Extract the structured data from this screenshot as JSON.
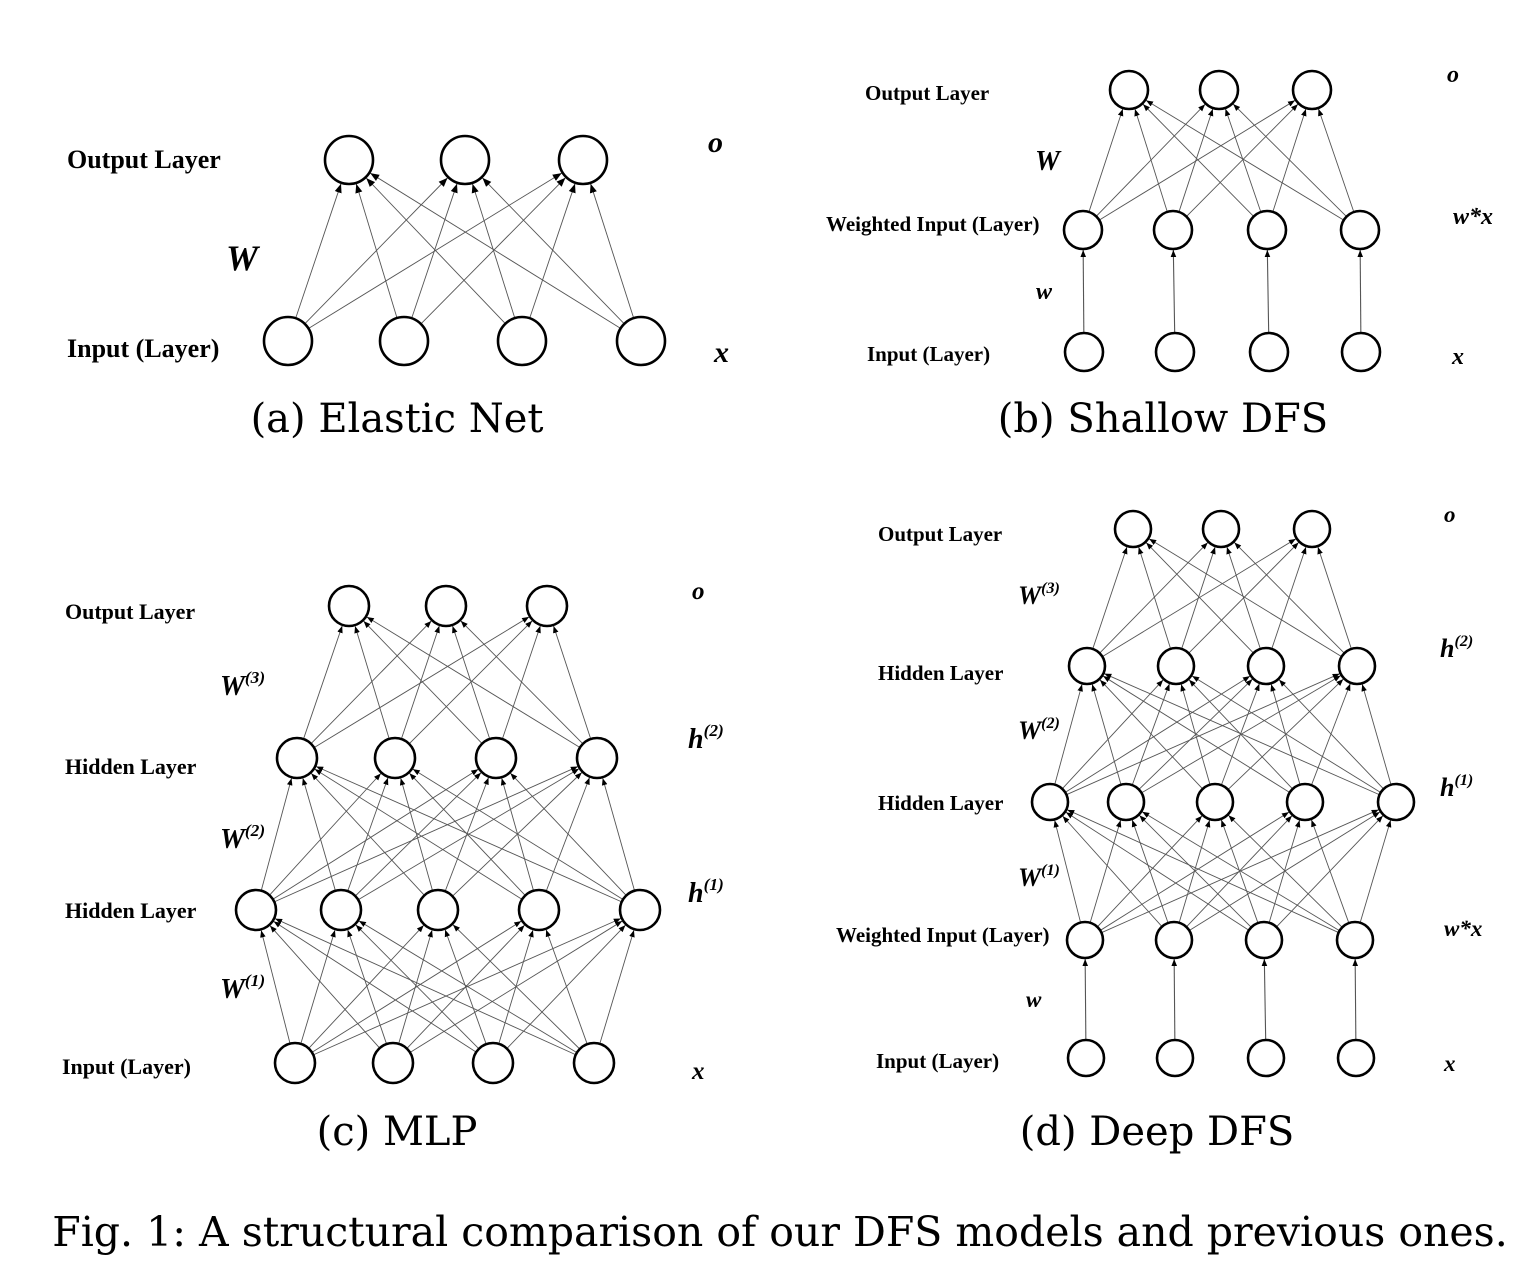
{
  "panels": [
    {
      "id": "a",
      "caption": "(a) Elastic Net",
      "layer_labels": [
        "Output Layer",
        "Input (Layer)"
      ],
      "var_labels": [
        {
          "base": "o",
          "sup": ""
        },
        {
          "base": "W",
          "sup": ""
        },
        {
          "base": "x",
          "sup": ""
        }
      ]
    },
    {
      "id": "b",
      "caption": "(b) Shallow DFS",
      "layer_labels": [
        "Output Layer",
        "Weighted Input (Layer)",
        "Input (Layer)"
      ],
      "var_labels": [
        {
          "base": "o",
          "sup": ""
        },
        {
          "base": "W",
          "sup": ""
        },
        {
          "base": "w*x",
          "sup": ""
        },
        {
          "base": "w",
          "sup": ""
        },
        {
          "base": "x",
          "sup": ""
        }
      ]
    },
    {
      "id": "c",
      "caption": "(c) MLP",
      "layer_labels": [
        "Output Layer",
        "Hidden Layer",
        "Hidden Layer",
        "Input (Layer)"
      ],
      "var_labels": [
        {
          "base": "o",
          "sup": ""
        },
        {
          "base": "W",
          "sup": "(3)"
        },
        {
          "base": "h",
          "sup": "(2)"
        },
        {
          "base": "W",
          "sup": "(2)"
        },
        {
          "base": "h",
          "sup": "(1)"
        },
        {
          "base": "W",
          "sup": "(1)"
        },
        {
          "base": "x",
          "sup": ""
        }
      ]
    },
    {
      "id": "d",
      "caption": "(d) Deep DFS",
      "layer_labels": [
        "Output Layer",
        "Hidden Layer",
        "Hidden Layer",
        "Weighted Input (Layer)",
        "Input (Layer)"
      ],
      "var_labels": [
        {
          "base": "o",
          "sup": ""
        },
        {
          "base": "W",
          "sup": "(3)"
        },
        {
          "base": "h",
          "sup": "(2)"
        },
        {
          "base": "W",
          "sup": "(2)"
        },
        {
          "base": "h",
          "sup": "(1)"
        },
        {
          "base": "W",
          "sup": "(1)"
        },
        {
          "base": "w*x",
          "sup": ""
        },
        {
          "base": "w",
          "sup": ""
        },
        {
          "base": "x",
          "sup": ""
        }
      ]
    }
  ],
  "figure_caption": "Fig. 1: A structural comparison of our DFS models and previous ones."
}
